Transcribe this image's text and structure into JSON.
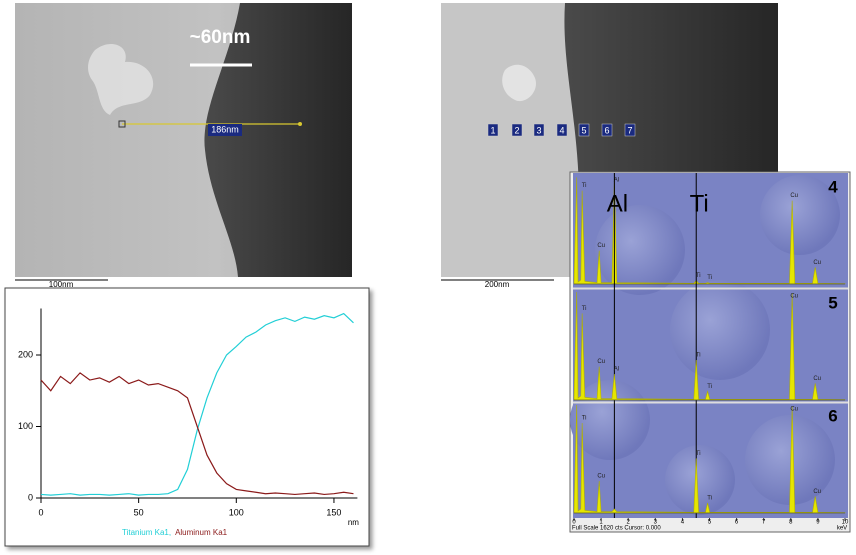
{
  "images": [
    {
      "annotation": "~60nm",
      "line_label": "186nm",
      "scale_bar": "100nm"
    },
    {
      "points": [
        "1",
        "2",
        "3",
        "4",
        "5",
        "6",
        "7"
      ],
      "scale_bar": "200nm"
    }
  ],
  "chart_data": [
    {
      "type": "line",
      "xlabel": "nm",
      "x": [
        0,
        5,
        10,
        15,
        20,
        25,
        30,
        35,
        40,
        45,
        50,
        55,
        60,
        65,
        70,
        75,
        80,
        85,
        90,
        95,
        100,
        105,
        110,
        115,
        120,
        125,
        130,
        135,
        140,
        145,
        150,
        155,
        160
      ],
      "series": [
        {
          "name": "Titanium Ka1,",
          "color": "#22cfd6",
          "values": [
            5,
            4,
            5,
            6,
            4,
            5,
            5,
            4,
            5,
            6,
            4,
            5,
            5,
            6,
            12,
            40,
            95,
            140,
            175,
            200,
            212,
            225,
            232,
            242,
            248,
            252,
            247,
            253,
            250,
            255,
            252,
            258,
            245
          ]
        },
        {
          "name": "Aluminum Ka1",
          "color": "#8b1a1a",
          "values": [
            165,
            150,
            170,
            160,
            175,
            165,
            168,
            162,
            170,
            160,
            165,
            158,
            160,
            155,
            150,
            140,
            100,
            60,
            35,
            20,
            12,
            10,
            8,
            6,
            7,
            6,
            5,
            6,
            7,
            5,
            6,
            8,
            6
          ]
        }
      ],
      "xlim": [
        0,
        162
      ],
      "xticks": [
        0,
        50,
        100,
        150
      ],
      "ylim": [
        0,
        265
      ],
      "yticks": [
        0,
        100,
        200
      ]
    },
    {
      "type": "area",
      "title": "4",
      "color": "#e6e600",
      "markers": [
        {
          "label": "Al",
          "x": 1.49
        },
        {
          "label": "Ti",
          "x": 4.51
        }
      ],
      "x": [
        0,
        0.1,
        0.15,
        0.25,
        0.3,
        0.4,
        0.85,
        0.93,
        1.0,
        1.4,
        1.49,
        1.58,
        4.42,
        4.51,
        4.6,
        4.85,
        4.93,
        5.01,
        7.95,
        8.05,
        8.15,
        8.8,
        8.9,
        9.0,
        10
      ],
      "values": [
        30,
        1600,
        30,
        60,
        1400,
        40,
        20,
        500,
        20,
        20,
        1580,
        20,
        10,
        50,
        10,
        10,
        20,
        10,
        10,
        1250,
        10,
        10,
        250,
        10,
        5
      ],
      "peak_labels": [
        {
          "text": "Ti",
          "x": 0.3
        },
        {
          "text": "Cu",
          "x": 0.93
        },
        {
          "text": "Al",
          "x": 1.49
        },
        {
          "text": "Ti",
          "x": 4.51
        },
        {
          "text": "Ti",
          "x": 4.93
        },
        {
          "text": "Cu",
          "x": 8.05
        },
        {
          "text": "Cu",
          "x": 8.9
        }
      ],
      "xlim": [
        0,
        10
      ],
      "ylim": [
        0,
        1620
      ]
    },
    {
      "type": "area",
      "title": "5",
      "color": "#e6e600",
      "x": [
        0,
        0.1,
        0.15,
        0.25,
        0.3,
        0.4,
        0.85,
        0.93,
        1.0,
        1.4,
        1.49,
        1.58,
        4.42,
        4.51,
        4.6,
        4.85,
        4.93,
        5.01,
        7.95,
        8.05,
        8.15,
        8.8,
        8.9,
        9.0,
        10
      ],
      "values": [
        30,
        1620,
        30,
        60,
        1300,
        40,
        20,
        500,
        20,
        20,
        390,
        20,
        10,
        600,
        10,
        10,
        130,
        10,
        10,
        1600,
        10,
        10,
        250,
        10,
        5
      ],
      "peak_labels": [
        {
          "text": "Ti",
          "x": 0.3
        },
        {
          "text": "Cu",
          "x": 0.93
        },
        {
          "text": "Al",
          "x": 1.49
        },
        {
          "text": "Ti",
          "x": 4.51
        },
        {
          "text": "Ti",
          "x": 4.93
        },
        {
          "text": "Cu",
          "x": 8.05
        },
        {
          "text": "Cu",
          "x": 8.9
        }
      ],
      "xlim": [
        0,
        10
      ],
      "ylim": [
        0,
        1620
      ]
    },
    {
      "type": "area",
      "title": "6",
      "color": "#e6e600",
      "x": [
        0,
        0.1,
        0.15,
        0.25,
        0.3,
        0.4,
        0.85,
        0.93,
        1.0,
        1.4,
        1.49,
        1.58,
        4.42,
        4.51,
        4.6,
        4.85,
        4.93,
        5.01,
        7.95,
        8.05,
        8.15,
        8.8,
        8.9,
        9.0,
        10
      ],
      "values": [
        30,
        1620,
        30,
        60,
        1350,
        40,
        20,
        480,
        20,
        20,
        60,
        20,
        10,
        820,
        10,
        10,
        150,
        10,
        10,
        1600,
        10,
        10,
        250,
        10,
        5
      ],
      "peak_labels": [
        {
          "text": "Ti",
          "x": 0.3
        },
        {
          "text": "Cu",
          "x": 0.93
        },
        {
          "text": "Ti",
          "x": 4.51
        },
        {
          "text": "Ti",
          "x": 4.93
        },
        {
          "text": "Cu",
          "x": 8.05
        },
        {
          "text": "Cu",
          "x": 8.9
        }
      ],
      "footer": "Full Scale 1620 cts Cursor: 0.000",
      "xlabel": "keV",
      "xlim": [
        0,
        10
      ],
      "xticks": [
        0,
        1,
        2,
        3,
        4,
        5,
        6,
        7,
        8,
        9,
        10
      ],
      "ylim": [
        0,
        1620
      ]
    }
  ]
}
